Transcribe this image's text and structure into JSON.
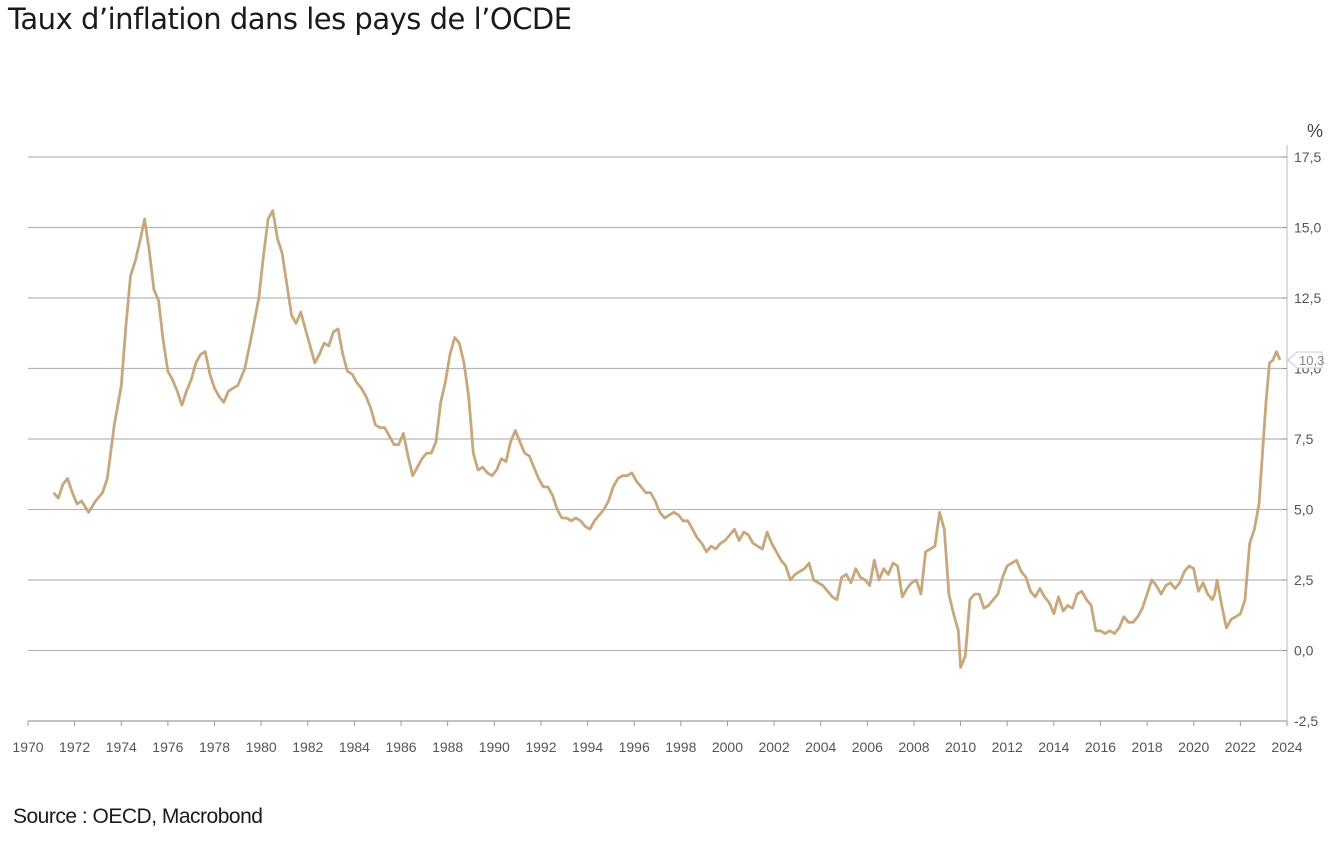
{
  "title": "Taux d’inflation dans les pays de l’OCDE",
  "source": "Source : OECD, Macrobond",
  "chart_data": {
    "type": "line",
    "title": "Taux d’inflation dans les pays de l’OCDE",
    "ylabel": "%",
    "xlabel": "",
    "xlim": [
      1970,
      2024
    ],
    "ylim": [
      -2.5,
      17.5
    ],
    "x_ticks": [
      1970,
      1972,
      1974,
      1976,
      1978,
      1980,
      1982,
      1984,
      1986,
      1988,
      1990,
      1992,
      1994,
      1996,
      1998,
      2000,
      2002,
      2004,
      2006,
      2008,
      2010,
      2012,
      2014,
      2016,
      2018,
      2020,
      2022,
      2024
    ],
    "y_ticks": [
      -2.5,
      0,
      2.5,
      5,
      7.5,
      10,
      12.5,
      15,
      17.5
    ],
    "y_tick_labels": [
      "-2,5",
      "0,0",
      "2,5",
      "5,0",
      "7,5",
      "10,0",
      "12,5",
      "15,0",
      "17,5"
    ],
    "grid": "horizontal",
    "axis_position": "right",
    "last_value_label": "10,3",
    "color": "#c9a77c",
    "series": [
      {
        "values": [
          [
            1971.1,
            5.6
          ],
          [
            1971.3,
            5.4
          ],
          [
            1971.5,
            5.9
          ],
          [
            1971.7,
            6.1
          ],
          [
            1971.9,
            5.6
          ],
          [
            1972.1,
            5.2
          ],
          [
            1972.3,
            5.3
          ],
          [
            1972.6,
            4.9
          ],
          [
            1972.9,
            5.3
          ],
          [
            1973.2,
            5.6
          ],
          [
            1973.4,
            6.1
          ],
          [
            1973.7,
            8.0
          ],
          [
            1974.0,
            9.4
          ],
          [
            1974.2,
            11.5
          ],
          [
            1974.4,
            13.3
          ],
          [
            1974.6,
            13.8
          ],
          [
            1974.8,
            14.5
          ],
          [
            1975.0,
            15.3
          ],
          [
            1975.2,
            14.2
          ],
          [
            1975.4,
            12.8
          ],
          [
            1975.6,
            12.4
          ],
          [
            1975.8,
            11.0
          ],
          [
            1976.0,
            9.9
          ],
          [
            1976.2,
            9.6
          ],
          [
            1976.4,
            9.2
          ],
          [
            1976.6,
            8.7
          ],
          [
            1976.8,
            9.2
          ],
          [
            1977.0,
            9.6
          ],
          [
            1977.2,
            10.2
          ],
          [
            1977.4,
            10.5
          ],
          [
            1977.6,
            10.6
          ],
          [
            1977.8,
            9.8
          ],
          [
            1978.0,
            9.3
          ],
          [
            1978.2,
            9.0
          ],
          [
            1978.4,
            8.8
          ],
          [
            1978.6,
            9.2
          ],
          [
            1978.8,
            9.3
          ],
          [
            1979.0,
            9.4
          ],
          [
            1979.3,
            10.0
          ],
          [
            1979.6,
            11.2
          ],
          [
            1979.9,
            12.5
          ],
          [
            1980.1,
            14.0
          ],
          [
            1980.3,
            15.3
          ],
          [
            1980.5,
            15.6
          ],
          [
            1980.7,
            14.6
          ],
          [
            1980.9,
            14.1
          ],
          [
            1981.1,
            13.0
          ],
          [
            1981.3,
            11.9
          ],
          [
            1981.5,
            11.6
          ],
          [
            1981.7,
            12.0
          ],
          [
            1981.9,
            11.4
          ],
          [
            1982.1,
            10.8
          ],
          [
            1982.3,
            10.2
          ],
          [
            1982.5,
            10.5
          ],
          [
            1982.7,
            10.9
          ],
          [
            1982.9,
            10.8
          ],
          [
            1983.1,
            11.3
          ],
          [
            1983.3,
            11.4
          ],
          [
            1983.5,
            10.5
          ],
          [
            1983.7,
            9.9
          ],
          [
            1983.9,
            9.8
          ],
          [
            1984.1,
            9.5
          ],
          [
            1984.3,
            9.3
          ],
          [
            1984.5,
            9.0
          ],
          [
            1984.7,
            8.6
          ],
          [
            1984.9,
            8.0
          ],
          [
            1985.1,
            7.9
          ],
          [
            1985.3,
            7.9
          ],
          [
            1985.5,
            7.6
          ],
          [
            1985.7,
            7.3
          ],
          [
            1985.9,
            7.3
          ],
          [
            1986.1,
            7.7
          ],
          [
            1986.3,
            6.9
          ],
          [
            1986.5,
            6.2
          ],
          [
            1986.7,
            6.5
          ],
          [
            1986.9,
            6.8
          ],
          [
            1987.1,
            7.0
          ],
          [
            1987.3,
            7.0
          ],
          [
            1987.5,
            7.4
          ],
          [
            1987.7,
            8.8
          ],
          [
            1987.9,
            9.5
          ],
          [
            1988.1,
            10.5
          ],
          [
            1988.3,
            11.1
          ],
          [
            1988.5,
            10.9
          ],
          [
            1988.7,
            10.2
          ],
          [
            1988.9,
            9.0
          ],
          [
            1989.1,
            7.0
          ],
          [
            1989.3,
            6.4
          ],
          [
            1989.5,
            6.5
          ],
          [
            1989.7,
            6.3
          ],
          [
            1989.9,
            6.2
          ],
          [
            1990.1,
            6.4
          ],
          [
            1990.3,
            6.8
          ],
          [
            1990.5,
            6.7
          ],
          [
            1990.7,
            7.4
          ],
          [
            1990.9,
            7.8
          ],
          [
            1991.1,
            7.4
          ],
          [
            1991.3,
            7.0
          ],
          [
            1991.5,
            6.9
          ],
          [
            1991.7,
            6.5
          ],
          [
            1991.9,
            6.1
          ],
          [
            1992.1,
            5.8
          ],
          [
            1992.3,
            5.8
          ],
          [
            1992.5,
            5.5
          ],
          [
            1992.7,
            5.0
          ],
          [
            1992.9,
            4.7
          ],
          [
            1993.1,
            4.7
          ],
          [
            1993.3,
            4.6
          ],
          [
            1993.5,
            4.7
          ],
          [
            1993.7,
            4.6
          ],
          [
            1993.9,
            4.4
          ],
          [
            1994.1,
            4.3
          ],
          [
            1994.3,
            4.6
          ],
          [
            1994.5,
            4.8
          ],
          [
            1994.7,
            5.0
          ],
          [
            1994.9,
            5.3
          ],
          [
            1995.1,
            5.8
          ],
          [
            1995.3,
            6.1
          ],
          [
            1995.5,
            6.2
          ],
          [
            1995.7,
            6.2
          ],
          [
            1995.9,
            6.3
          ],
          [
            1996.1,
            6.0
          ],
          [
            1996.3,
            5.8
          ],
          [
            1996.5,
            5.6
          ],
          [
            1996.7,
            5.6
          ],
          [
            1996.9,
            5.3
          ],
          [
            1997.1,
            4.9
          ],
          [
            1997.3,
            4.7
          ],
          [
            1997.5,
            4.8
          ],
          [
            1997.7,
            4.9
          ],
          [
            1997.9,
            4.8
          ],
          [
            1998.1,
            4.6
          ],
          [
            1998.3,
            4.6
          ],
          [
            1998.5,
            4.3
          ],
          [
            1998.7,
            4.0
          ],
          [
            1998.9,
            3.8
          ],
          [
            1999.1,
            3.5
          ],
          [
            1999.3,
            3.7
          ],
          [
            1999.5,
            3.6
          ],
          [
            1999.7,
            3.8
          ],
          [
            1999.9,
            3.9
          ],
          [
            2000.1,
            4.1
          ],
          [
            2000.3,
            4.3
          ],
          [
            2000.5,
            3.9
          ],
          [
            2000.7,
            4.2
          ],
          [
            2000.9,
            4.1
          ],
          [
            2001.1,
            3.8
          ],
          [
            2001.3,
            3.7
          ],
          [
            2001.5,
            3.6
          ],
          [
            2001.7,
            4.2
          ],
          [
            2001.9,
            3.8
          ],
          [
            2002.1,
            3.5
          ],
          [
            2002.3,
            3.2
          ],
          [
            2002.5,
            3.0
          ],
          [
            2002.7,
            2.5
          ],
          [
            2002.9,
            2.7
          ],
          [
            2003.1,
            2.8
          ],
          [
            2003.3,
            2.9
          ],
          [
            2003.5,
            3.1
          ],
          [
            2003.7,
            2.5
          ],
          [
            2003.9,
            2.4
          ],
          [
            2004.1,
            2.3
          ],
          [
            2004.3,
            2.1
          ],
          [
            2004.5,
            1.9
          ],
          [
            2004.7,
            1.8
          ],
          [
            2004.9,
            2.6
          ],
          [
            2005.1,
            2.7
          ],
          [
            2005.3,
            2.4
          ],
          [
            2005.5,
            2.9
          ],
          [
            2005.7,
            2.6
          ],
          [
            2005.9,
            2.5
          ],
          [
            2006.1,
            2.3
          ],
          [
            2006.3,
            3.2
          ],
          [
            2006.5,
            2.5
          ],
          [
            2006.7,
            2.9
          ],
          [
            2006.9,
            2.7
          ],
          [
            2007.1,
            3.1
          ],
          [
            2007.3,
            3.0
          ],
          [
            2007.5,
            1.9
          ],
          [
            2007.7,
            2.2
          ],
          [
            2007.9,
            2.4
          ],
          [
            2008.1,
            2.5
          ],
          [
            2008.3,
            2.0
          ],
          [
            2008.5,
            3.5
          ],
          [
            2008.7,
            3.6
          ],
          [
            2008.9,
            3.7
          ],
          [
            2009.1,
            4.9
          ],
          [
            2009.3,
            4.3
          ],
          [
            2009.5,
            2.0
          ],
          [
            2009.7,
            1.3
          ],
          [
            2009.9,
            0.7
          ],
          [
            2010.0,
            -0.6
          ],
          [
            2010.2,
            -0.2
          ],
          [
            2010.4,
            1.8
          ],
          [
            2010.6,
            2.0
          ],
          [
            2010.8,
            2.0
          ],
          [
            2011.0,
            1.5
          ],
          [
            2011.2,
            1.6
          ],
          [
            2011.4,
            1.8
          ],
          [
            2011.6,
            2.0
          ],
          [
            2011.8,
            2.6
          ],
          [
            2012.0,
            3.0
          ],
          [
            2012.2,
            3.1
          ],
          [
            2012.4,
            3.2
          ],
          [
            2012.6,
            2.8
          ],
          [
            2012.8,
            2.6
          ],
          [
            2013.0,
            2.1
          ],
          [
            2013.2,
            1.9
          ],
          [
            2013.4,
            2.2
          ],
          [
            2013.6,
            1.9
          ],
          [
            2013.8,
            1.7
          ],
          [
            2014.0,
            1.3
          ],
          [
            2014.2,
            1.9
          ],
          [
            2014.4,
            1.4
          ],
          [
            2014.6,
            1.6
          ],
          [
            2014.8,
            1.5
          ],
          [
            2015.0,
            2.0
          ],
          [
            2015.2,
            2.1
          ],
          [
            2015.4,
            1.8
          ],
          [
            2015.6,
            1.6
          ],
          [
            2015.8,
            0.7
          ],
          [
            2016.0,
            0.7
          ],
          [
            2016.2,
            0.6
          ],
          [
            2016.4,
            0.7
          ],
          [
            2016.6,
            0.6
          ],
          [
            2016.8,
            0.8
          ],
          [
            2017.0,
            1.2
          ],
          [
            2017.2,
            1.0
          ],
          [
            2017.4,
            1.0
          ],
          [
            2017.6,
            1.2
          ],
          [
            2017.8,
            1.5
          ],
          [
            2018.0,
            2.0
          ],
          [
            2018.2,
            2.5
          ],
          [
            2018.4,
            2.3
          ],
          [
            2018.6,
            2.0
          ],
          [
            2018.8,
            2.3
          ],
          [
            2019.0,
            2.4
          ],
          [
            2019.2,
            2.2
          ],
          [
            2019.4,
            2.4
          ],
          [
            2019.6,
            2.8
          ],
          [
            2019.8,
            3.0
          ],
          [
            2020.0,
            2.9
          ],
          [
            2020.2,
            2.1
          ],
          [
            2020.4,
            2.4
          ],
          [
            2020.6,
            2.0
          ],
          [
            2020.8,
            1.8
          ],
          [
            2020.9,
            2.0
          ],
          [
            2021.0,
            2.5
          ],
          [
            2021.2,
            1.6
          ],
          [
            2021.4,
            0.8
          ],
          [
            2021.6,
            1.1
          ],
          [
            2021.8,
            1.2
          ],
          [
            2022.0,
            1.3
          ],
          [
            2022.2,
            1.8
          ],
          [
            2022.4,
            3.8
          ],
          [
            2022.6,
            4.3
          ],
          [
            2022.8,
            5.2
          ],
          [
            2022.95,
            7.0
          ],
          [
            2023.1,
            8.8
          ],
          [
            2023.25,
            10.2
          ],
          [
            2023.4,
            10.3
          ],
          [
            2023.55,
            10.6
          ],
          [
            2023.7,
            10.3
          ]
        ]
      }
    ]
  }
}
